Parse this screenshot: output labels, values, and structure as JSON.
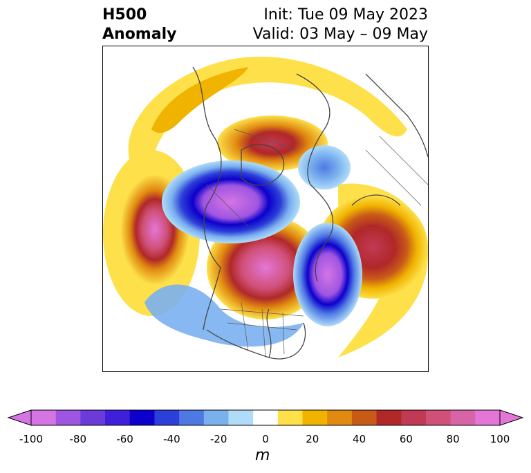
{
  "title": {
    "left_line1": "H500",
    "left_line2": "Anomaly",
    "right_line1": "Init: Tue 09 May 2023",
    "right_line2": "Valid: 03 May – 09 May"
  },
  "colorbar": {
    "label": "m",
    "ticks": [
      "-100",
      "-80",
      "-60",
      "-40",
      "-20",
      "0",
      "20",
      "40",
      "60",
      "80",
      "100"
    ],
    "colors": [
      "#d575e4",
      "#9f55e1",
      "#6a3bd9",
      "#3f1fd9",
      "#0c00cc",
      "#2c3fd9",
      "#4e79e4",
      "#7bb0ef",
      "#b0dcf8",
      "#ffffff",
      "#fde04a",
      "#f0b400",
      "#e08a10",
      "#c85a18",
      "#b02828",
      "#c03a55",
      "#d05078",
      "#d864a8",
      "#e476d8"
    ],
    "extend_low_color": "#d575e4",
    "extend_high_color": "#e476d8"
  },
  "map": {
    "projection": "polar stereographic (North America / North Pole)",
    "field": "500 hPa geopotential height anomaly",
    "units": "m"
  }
}
